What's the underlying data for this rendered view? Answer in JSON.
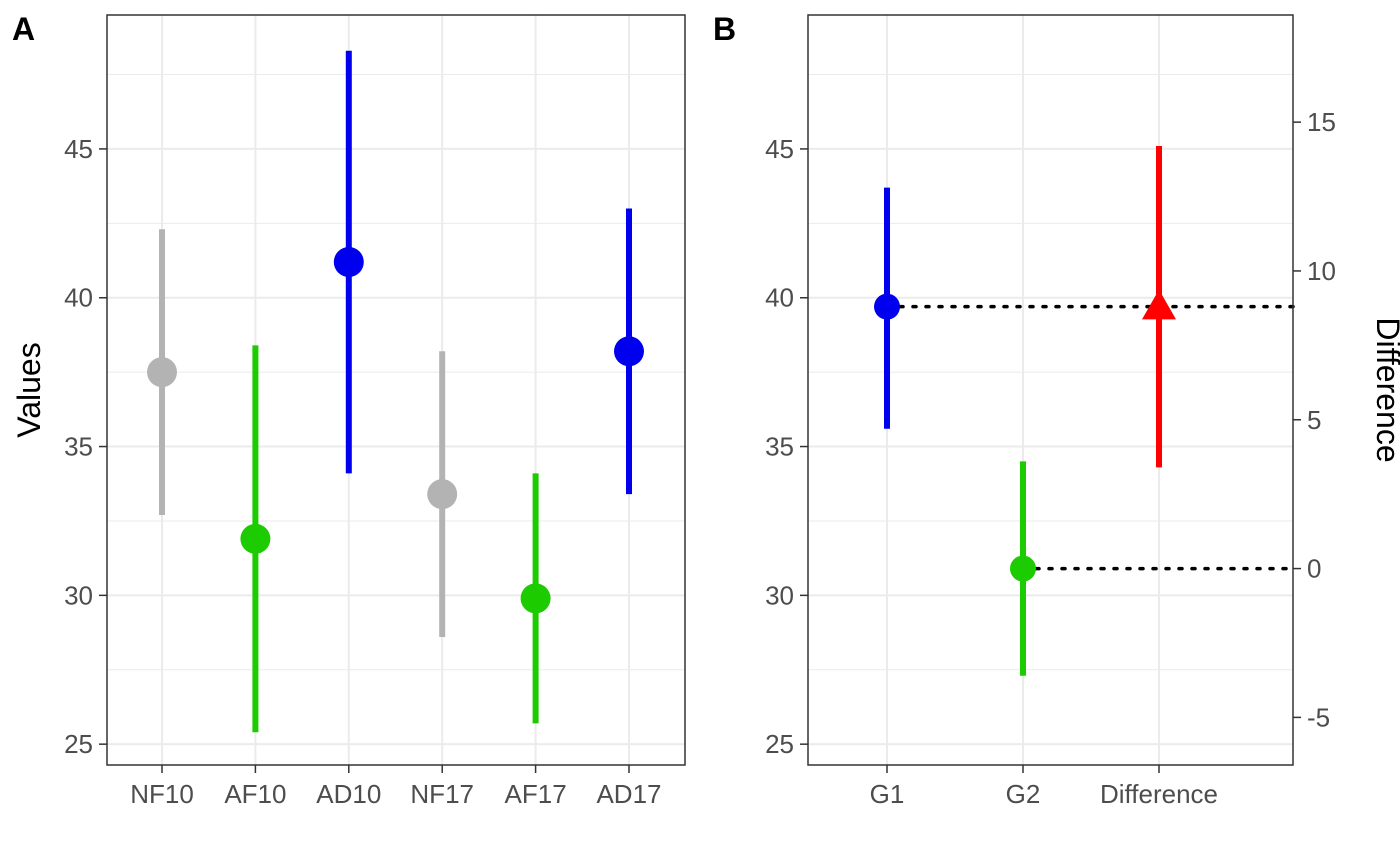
{
  "chart_data": [
    {
      "panel_tag": "A",
      "type": "scatter",
      "ylabel": "Values",
      "xlabel": "",
      "ylim": [
        24.3,
        49.5
      ],
      "yticks": [
        25,
        30,
        35,
        40,
        45
      ],
      "grid": true,
      "categories": [
        "NF10",
        "AF10",
        "AD10",
        "NF17",
        "AF17",
        "AD17"
      ],
      "points": [
        {
          "category": "NF10",
          "value": 37.5,
          "lower": 32.7,
          "upper": 42.3,
          "color": "#b3b3b3"
        },
        {
          "category": "AF10",
          "value": 31.9,
          "lower": 25.4,
          "upper": 38.4,
          "color": "#1ccb00"
        },
        {
          "category": "AD10",
          "value": 41.2,
          "lower": 34.1,
          "upper": 48.3,
          "color": "#0000ee"
        },
        {
          "category": "NF17",
          "value": 33.4,
          "lower": 28.6,
          "upper": 38.2,
          "color": "#b3b3b3"
        },
        {
          "category": "AF17",
          "value": 29.9,
          "lower": 25.7,
          "upper": 34.1,
          "color": "#1ccb00"
        },
        {
          "category": "AD17",
          "value": 38.2,
          "lower": 33.4,
          "upper": 43.0,
          "color": "#0000ee"
        }
      ]
    },
    {
      "panel_tag": "B",
      "type": "scatter",
      "xlabel": "",
      "ylabel": "",
      "ylim": [
        24.3,
        49.5
      ],
      "yticks": [
        25,
        30,
        35,
        40,
        45
      ],
      "y2label": "Difference",
      "y2ticks": [
        -5,
        0,
        5,
        10,
        15
      ],
      "y2_zero_at": 30.9,
      "grid": true,
      "categories": [
        "G1",
        "G2",
        "Difference"
      ],
      "points": [
        {
          "category": "G1",
          "value": 39.7,
          "lower": 35.6,
          "upper": 43.7,
          "color": "#0000ee",
          "shape": "circle",
          "axis": "left"
        },
        {
          "category": "G2",
          "value": 30.9,
          "lower": 27.3,
          "upper": 34.5,
          "color": "#1ccb00",
          "shape": "circle",
          "axis": "left"
        },
        {
          "category": "Difference",
          "value": 8.8,
          "lower": 3.4,
          "upper": 14.2,
          "color": "#ff0000",
          "shape": "triangle",
          "axis": "right"
        }
      ],
      "reference_lines": [
        {
          "from": "G1",
          "value": 39.7,
          "style": "dotted"
        },
        {
          "from": "G2",
          "value": 30.9,
          "style": "dotted"
        }
      ]
    }
  ]
}
